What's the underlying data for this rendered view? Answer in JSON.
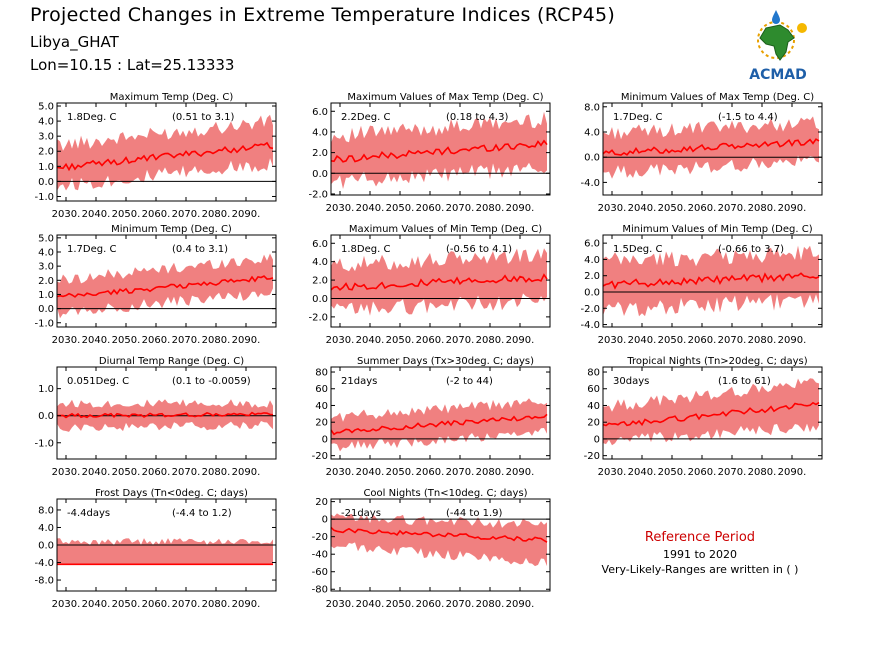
{
  "header": {
    "title": "Projected Changes in Extreme Temperature Indices (RCP45)",
    "location": "Libya_GHAT",
    "coords": "Lon=10.15 : Lat=25.13333"
  },
  "logo": {
    "text": "ACMAD",
    "icon": "africa-map-logo"
  },
  "reference": {
    "title": "Reference Period",
    "years": "1991 to 2020",
    "note": "Very-Likely-Ranges are written in ( )"
  },
  "colors": {
    "band": "#f08080",
    "line": "#ff0000",
    "zero_line": "#000000"
  },
  "chart_data": [
    {
      "type": "line",
      "title": "Maximum Temp (Deg. C)",
      "mean_label": "1.8Deg. C",
      "range_label": "(0.51 to 3.1)",
      "x_range": [
        2027,
        2100
      ],
      "x_ticks": [
        2030,
        2040,
        2050,
        2060,
        2070,
        2080,
        2090
      ],
      "y_ticks": [
        -1.0,
        0.0,
        1.0,
        2.0,
        3.0,
        4.0,
        5.0
      ],
      "y_tick_labels": [
        "-1.0",
        "0.0",
        "1.0",
        "2.0",
        "3.0",
        "4.0",
        "5.0"
      ],
      "ylim": [
        -1.3,
        5.2
      ],
      "series": [
        {
          "start": 0.9,
          "end": 2.4,
          "low_start": -0.3,
          "low_end": 1.2,
          "high_start": 2.4,
          "high_end": 4.0
        }
      ]
    },
    {
      "type": "line",
      "title": "Maximum Values of Max Temp (Deg. C)",
      "mean_label": "2.2Deg. C",
      "range_label": "(0.18 to 4.3)",
      "x_range": [
        2027,
        2100
      ],
      "x_ticks": [
        2030,
        2040,
        2050,
        2060,
        2070,
        2080,
        2090
      ],
      "y_ticks": [
        -2.0,
        0.0,
        2.0,
        4.0,
        6.0
      ],
      "y_tick_labels": [
        "-2.0",
        "0.0",
        "2.0",
        "4.0",
        "6.0"
      ],
      "ylim": [
        -2.1,
        6.8
      ],
      "series": [
        {
          "start": 1.3,
          "end": 2.9,
          "low_start": -0.8,
          "low_end": 0.5,
          "high_start": 3.6,
          "high_end": 5.2
        }
      ]
    },
    {
      "type": "line",
      "title": "Minimum Values of Max Temp (Deg. C)",
      "mean_label": "1.7Deg. C",
      "range_label": "(-1.5 to 4.4)",
      "x_range": [
        2027,
        2100
      ],
      "x_ticks": [
        2030,
        2040,
        2050,
        2060,
        2070,
        2080,
        2090
      ],
      "y_ticks": [
        -4.0,
        0.0,
        4.0,
        8.0
      ],
      "y_tick_labels": [
        "-4.0",
        "0.0",
        "4.0",
        "8.0"
      ],
      "ylim": [
        -6.0,
        8.6
      ],
      "series": [
        {
          "start": 0.6,
          "end": 2.5,
          "low_start": -2.5,
          "low_end": -0.6,
          "high_start": 3.8,
          "high_end": 5.5
        }
      ]
    },
    {
      "type": "line",
      "title": "Minimum Temp (Deg. C)",
      "mean_label": "1.7Deg. C",
      "range_label": "(0.4 to 3.1)",
      "x_range": [
        2027,
        2100
      ],
      "x_ticks": [
        2030,
        2040,
        2050,
        2060,
        2070,
        2080,
        2090
      ],
      "y_ticks": [
        -1.0,
        0.0,
        1.0,
        2.0,
        3.0,
        4.0,
        5.0
      ],
      "y_tick_labels": [
        "-1.0",
        "0.0",
        "1.0",
        "2.0",
        "3.0",
        "4.0",
        "5.0"
      ],
      "ylim": [
        -1.3,
        5.2
      ],
      "series": [
        {
          "start": 0.8,
          "end": 2.2,
          "low_start": -0.3,
          "low_end": 1.1,
          "high_start": 2.0,
          "high_end": 3.6
        }
      ]
    },
    {
      "type": "line",
      "title": "Maximum Values of Min Temp (Deg. C)",
      "mean_label": "1.8Deg. C",
      "range_label": "(-0.56 to 4.1)",
      "x_range": [
        2027,
        2100
      ],
      "x_ticks": [
        2030,
        2040,
        2050,
        2060,
        2070,
        2080,
        2090
      ],
      "y_ticks": [
        -2.0,
        0.0,
        2.0,
        4.0,
        6.0
      ],
      "y_tick_labels": [
        "-2.0",
        "0.0",
        "2.0",
        "4.0",
        "6.0"
      ],
      "ylim": [
        -3.1,
        6.9
      ],
      "series": [
        {
          "start": 1.2,
          "end": 2.3,
          "low_start": -1.3,
          "low_end": -0.2,
          "high_start": 3.6,
          "high_end": 4.8
        }
      ]
    },
    {
      "type": "line",
      "title": "Minimum Values of Min Temp (Deg. C)",
      "mean_label": "1.5Deg. C",
      "range_label": "(-0.66 to 3.7)",
      "x_range": [
        2027,
        2100
      ],
      "x_ticks": [
        2030,
        2040,
        2050,
        2060,
        2070,
        2080,
        2090
      ],
      "y_ticks": [
        -4.0,
        -2.0,
        0.0,
        2.0,
        4.0,
        6.0
      ],
      "y_tick_labels": [
        "-4.0",
        "-2.0",
        "0.0",
        "2.0",
        "4.0",
        "6.0"
      ],
      "ylim": [
        -4.3,
        7.0
      ],
      "series": [
        {
          "start": 0.9,
          "end": 2.0,
          "low_start": -2.2,
          "low_end": -1.0,
          "high_start": 3.8,
          "high_end": 4.8
        }
      ]
    },
    {
      "type": "line",
      "title": "Diurnal Temp Range (Deg. C)",
      "mean_label": "0.051Deg. C",
      "range_label": "(0.1 to -0.0059)",
      "x_range": [
        2027,
        2100
      ],
      "x_ticks": [
        2030,
        2040,
        2050,
        2060,
        2070,
        2080,
        2090
      ],
      "y_ticks": [
        -1.0,
        0.0,
        1.0
      ],
      "y_tick_labels": [
        "-1.0",
        "0.0",
        "1.0"
      ],
      "ylim": [
        -1.6,
        1.8
      ],
      "series": [
        {
          "start": 0.0,
          "end": 0.05,
          "low_start": -0.45,
          "low_end": -0.35,
          "high_start": 0.45,
          "high_end": 0.45
        }
      ]
    },
    {
      "type": "line",
      "title": "Summer Days (Tx>30deg. C; days)",
      "mean_label": "21days",
      "range_label": "(-2 to 44)",
      "x_range": [
        2027,
        2100
      ],
      "x_ticks": [
        2030,
        2040,
        2050,
        2060,
        2070,
        2080,
        2090
      ],
      "y_ticks": [
        -20,
        0,
        20,
        40,
        60,
        80
      ],
      "y_tick_labels": [
        "-20",
        "0",
        "20",
        "40",
        "60",
        "80"
      ],
      "ylim": [
        -24,
        86
      ],
      "series": [
        {
          "start": 8,
          "end": 27,
          "low_start": -10,
          "low_end": 7,
          "high_start": 26,
          "high_end": 45
        }
      ]
    },
    {
      "type": "line",
      "title": "Tropical Nights (Tn>20deg. C; days)",
      "mean_label": "30days",
      "range_label": "(1.6 to 61)",
      "x_range": [
        2027,
        2100
      ],
      "x_ticks": [
        2030,
        2040,
        2050,
        2060,
        2070,
        2080,
        2090
      ],
      "y_ticks": [
        -20,
        0,
        20,
        40,
        60,
        80
      ],
      "y_tick_labels": [
        "-20",
        "0",
        "20",
        "40",
        "60",
        "80"
      ],
      "ylim": [
        -24,
        86
      ],
      "series": [
        {
          "start": 15,
          "end": 42,
          "low_start": -4,
          "low_end": 15,
          "high_start": 38,
          "high_end": 68
        }
      ]
    },
    {
      "type": "line",
      "title": "Frost Days (Tn<0deg. C; days)",
      "mean_label": "-4.4days",
      "range_label": "(-4.4 to 1.2)",
      "x_range": [
        2027,
        2100
      ],
      "x_ticks": [
        2030,
        2040,
        2050,
        2060,
        2070,
        2080,
        2090
      ],
      "y_ticks": [
        -8.0,
        -4.0,
        0.0,
        4.0,
        8.0
      ],
      "y_tick_labels": [
        "-8.0",
        "-4.0",
        "0.0",
        "4.0",
        "8.0"
      ],
      "ylim": [
        -10.5,
        10.5
      ],
      "series": [
        {
          "start": -4.4,
          "end": -4.4,
          "low_start": -4.4,
          "low_end": -4.4,
          "high_start": 0.0,
          "high_end": 0.0
        }
      ]
    },
    {
      "type": "line",
      "title": "Cool Nights (Tn<10deg. C; days)",
      "mean_label": "-21days",
      "range_label": "(-44 to 1.9)",
      "x_range": [
        2027,
        2100
      ],
      "x_ticks": [
        2030,
        2040,
        2050,
        2060,
        2070,
        2080,
        2090
      ],
      "y_ticks": [
        -80,
        -60,
        -40,
        -20,
        0,
        20
      ],
      "y_tick_labels": [
        "-80",
        "-60",
        "-40",
        "-20",
        "0",
        "20"
      ],
      "ylim": [
        -82,
        23
      ],
      "series": [
        {
          "start": -12,
          "end": -24,
          "low_start": -30,
          "low_end": -50,
          "high_start": 2,
          "high_end": -6
        }
      ]
    }
  ]
}
